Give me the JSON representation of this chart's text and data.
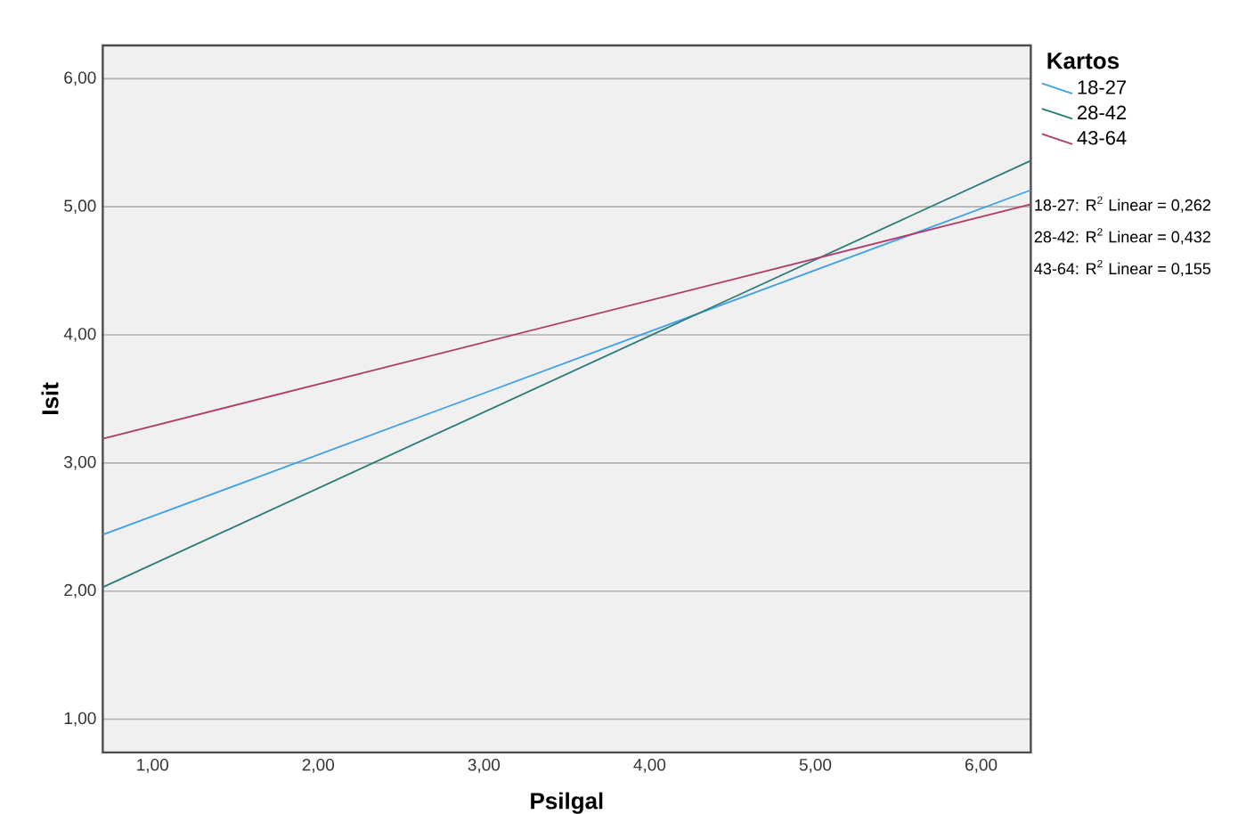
{
  "chart_data": {
    "type": "line",
    "xlabel": "Psilgal",
    "ylabel": "Isit",
    "legend_title": "Kartos",
    "x": [
      0.7,
      6.3
    ],
    "series": [
      {
        "name": "18-27",
        "color": "#3da0e8",
        "values": [
          2.44,
          5.13
        ]
      },
      {
        "name": "28-42",
        "color": "#2a7a78",
        "values": [
          2.03,
          5.36
        ]
      },
      {
        "name": "43-64",
        "color": "#b03a6a",
        "values": [
          3.19,
          5.02
        ]
      }
    ],
    "xlim": [
      0.7,
      6.3
    ],
    "ylim": [
      0.74,
      6.26
    ],
    "xticks": [
      {
        "value": 1,
        "label": "1,00"
      },
      {
        "value": 2,
        "label": "2,00"
      },
      {
        "value": 3,
        "label": "3,00"
      },
      {
        "value": 4,
        "label": "4,00"
      },
      {
        "value": 5,
        "label": "5,00"
      },
      {
        "value": 6,
        "label": "6,00"
      }
    ],
    "yticks": [
      {
        "value": 1,
        "label": "1,00"
      },
      {
        "value": 2,
        "label": "2,00"
      },
      {
        "value": 3,
        "label": "3,00"
      },
      {
        "value": 4,
        "label": "4,00"
      },
      {
        "value": 5,
        "label": "5,00"
      },
      {
        "value": 6,
        "label": "6,00"
      }
    ],
    "grid": "y",
    "legend": "top right",
    "marker": "none",
    "line_style": "solid",
    "annotations": [
      "18-27: R$^{2}$ Linear = 0,262",
      "28-42: R$^{2}$ Linear = 0,432",
      "43-64: R$^{2}$ Linear = 0,155"
    ]
  }
}
